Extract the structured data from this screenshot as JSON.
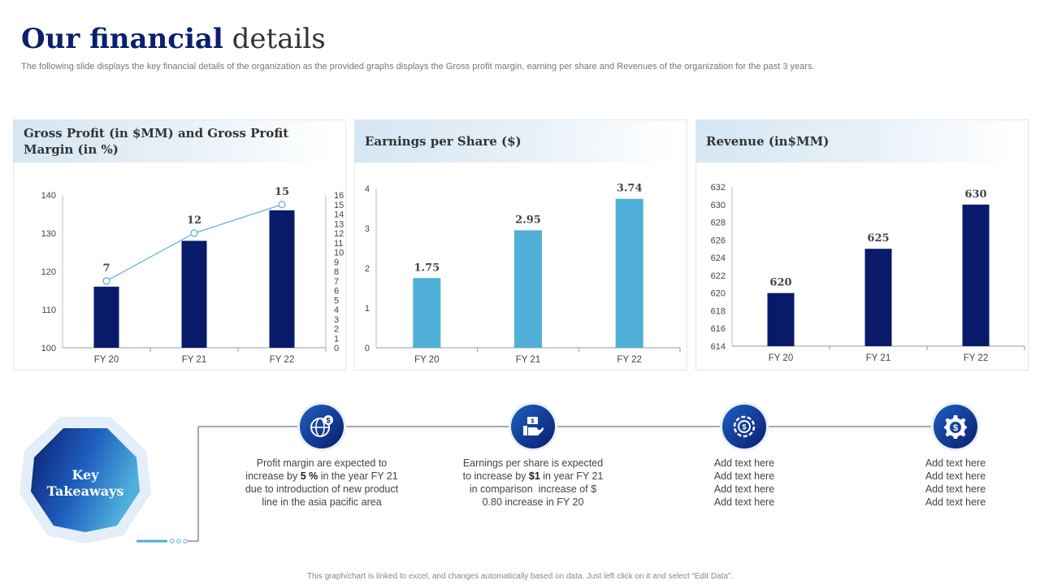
{
  "header": {
    "title_bold": "Our financial",
    "title_light": "details",
    "subtitle": "The following slide displays the key financial details of the organization as the provided graphs displays the Gross profit margin, earning per share and Revenues of the organization for the past 3 years."
  },
  "colors": {
    "navy": "#0a1a6b",
    "light_blue": "#4fafd6",
    "line": "#5aa9dd"
  },
  "panels": {
    "gross": {
      "title": "Gross Profit (in $MM) and Gross Profit Margin (in %)"
    },
    "eps": {
      "title": "Earnings per Share ($)"
    },
    "revenue": {
      "title": "Revenue (in$MM)"
    }
  },
  "chart_data": [
    {
      "id": "gross",
      "type": "bar",
      "title": "Gross Profit (in $MM) and Gross Profit Margin (in %)",
      "categories": [
        "FY 20",
        "FY 21",
        "FY 22"
      ],
      "series": [
        {
          "name": "Gross Profit (in $MM)",
          "values": [
            116,
            128,
            136
          ]
        },
        {
          "name": "Gross Profit Margin (in %)",
          "type": "line",
          "axis": "secondary",
          "values": [
            7,
            12,
            15
          ]
        }
      ],
      "ylim": [
        100,
        140
      ],
      "yticks": [
        "100",
        "110",
        "120",
        "130",
        "140"
      ],
      "y2lim": [
        0,
        16
      ],
      "y2ticks": [
        "0",
        "1",
        "2",
        "3",
        "4",
        "5",
        "6",
        "7",
        "8",
        "9",
        "10",
        "11",
        "12",
        "13",
        "14",
        "15",
        "16"
      ],
      "data_labels": [
        "7",
        "12",
        "15"
      ]
    },
    {
      "id": "eps",
      "type": "bar",
      "title": "Earnings per Share ($)",
      "categories": [
        "FY 20",
        "FY 21",
        "FY 22"
      ],
      "values": [
        1.75,
        2.95,
        3.74
      ],
      "ylim": [
        0,
        4
      ],
      "yticks": [
        "0",
        "1",
        "2",
        "3",
        "4"
      ],
      "data_labels": [
        "1.75",
        "2.95",
        "3.74"
      ]
    },
    {
      "id": "revenue",
      "type": "bar",
      "title": "Revenue (in$MM)",
      "categories": [
        "FY 20",
        "FY 21",
        "FY 22"
      ],
      "values": [
        620,
        625,
        630
      ],
      "ylim": [
        614,
        632
      ],
      "yticks": [
        "614",
        "616",
        "618",
        "620",
        "622",
        "624",
        "626",
        "628",
        "630",
        "632"
      ],
      "data_labels": [
        "620",
        "625",
        "630"
      ]
    }
  ],
  "takeaways": {
    "label_line1": "Key",
    "label_line2": "Takeaways",
    "items": [
      {
        "icon": "globe-dollar-icon",
        "pre1": "Profit margin are expected to",
        "pre2": "increase by ",
        "bold": "5 %",
        "post2": " in the year FY 21",
        "line3": "due to introduction of new product",
        "line4": "line in the asia pacific area"
      },
      {
        "icon": "money-hand-icon",
        "pre1": "Earnings per share is expected",
        "pre2": "to increase by ",
        "bold": "$1",
        "post2": " in year FY 21",
        "line3": "in comparison  increase of $",
        "line4": "0.80 increase in FY 20"
      },
      {
        "icon": "target-gear-icon",
        "line1": "Add text here",
        "line2": "Add text here",
        "line3": "Add text here",
        "line4": "Add text here"
      },
      {
        "icon": "dollar-gear-icon",
        "line1": "Add text here",
        "line2": "Add text here",
        "line3": "Add text here",
        "line4": "Add text here"
      }
    ]
  },
  "footer": "This graph/chart is linked to excel, and changes automatically based on data. Just left click on it and select “Edit Data”."
}
